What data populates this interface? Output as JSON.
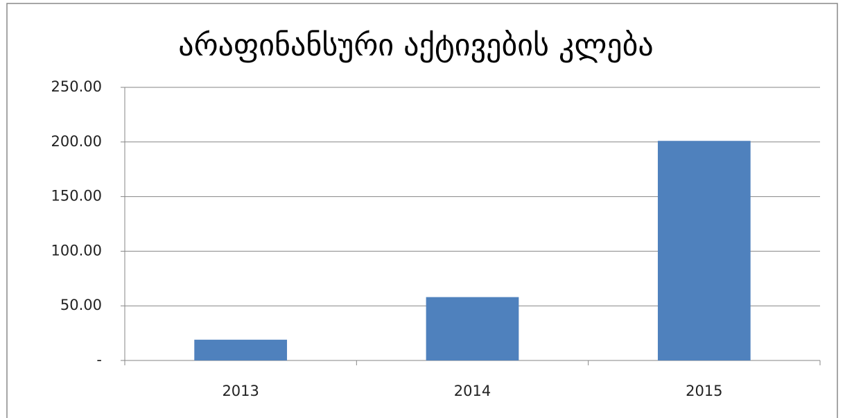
{
  "chart_data": {
    "type": "bar",
    "title": "არაფინანსური აქტივების კლება",
    "categories": [
      "2013",
      "2014",
      "2015"
    ],
    "values": [
      19,
      58,
      201
    ],
    "color": "#4f81bd",
    "ylim": [
      0,
      250
    ],
    "yticks": [
      {
        "value": 0,
        "label": "-"
      },
      {
        "value": 50,
        "label": "50.00"
      },
      {
        "value": 100,
        "label": "100.00"
      },
      {
        "value": 150,
        "label": "150.00"
      },
      {
        "value": 200,
        "label": "200.00"
      },
      {
        "value": 250,
        "label": "250.00"
      }
    ],
    "grid": true
  }
}
